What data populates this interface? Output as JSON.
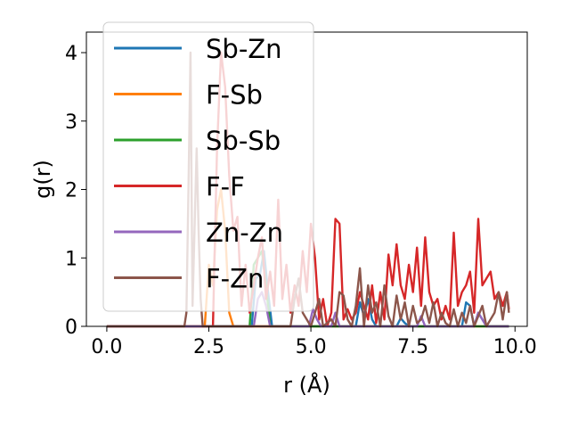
{
  "chart_data": {
    "type": "line",
    "xlabel": "r (Å)",
    "ylabel": "g(r)",
    "xlim": [
      -0.5,
      10.3
    ],
    "ylim": [
      0,
      4.3
    ],
    "xticks": [
      0.0,
      2.5,
      5.0,
      7.5,
      10.0
    ],
    "xtick_labels": [
      "0.0",
      "2.5",
      "5.0",
      "7.5",
      "10.0"
    ],
    "yticks": [
      0,
      1,
      2,
      3,
      4
    ],
    "ytick_labels": [
      "0",
      "1",
      "2",
      "3",
      "4"
    ],
    "grid": false,
    "legend_position": "upper-left",
    "series": [
      {
        "name": "Sb-Zn",
        "color": "#1f77b4",
        "x": [
          0,
          3.55,
          3.65,
          3.75,
          3.85,
          3.95,
          4.05,
          5.8,
          6.1,
          6.2,
          6.3,
          6.4,
          6.5,
          6.6,
          7.1,
          7.2,
          7.3,
          7.4,
          8.7,
          8.8,
          8.9,
          9.0,
          9.1,
          9.2,
          9.3,
          9.85
        ],
        "y": [
          0,
          0,
          0.7,
          0.75,
          1.1,
          0.5,
          0,
          0,
          0,
          0.35,
          0.15,
          0.4,
          0.1,
          0,
          0,
          0.12,
          0.05,
          0,
          0,
          0.35,
          0.3,
          0,
          0.2,
          0.1,
          0,
          0
        ]
      },
      {
        "name": "F-Sb",
        "color": "#ff7f0e",
        "x": [
          0,
          2.4,
          2.5,
          2.6,
          2.7,
          2.8,
          2.9,
          3.0,
          3.1,
          9.85
        ],
        "y": [
          0,
          0,
          0.9,
          0.6,
          1.7,
          2.0,
          1.4,
          0.2,
          0,
          0
        ]
      },
      {
        "name": "Sb-Sb",
        "color": "#2ca02c",
        "x": [
          0,
          3.5,
          3.6,
          3.7,
          3.8,
          3.9,
          4.0,
          9.85
        ],
        "y": [
          0,
          0,
          0.9,
          1.0,
          1.1,
          0.6,
          0,
          0
        ]
      },
      {
        "name": "F-F",
        "color": "#d62728",
        "x": [
          0,
          2.6,
          2.7,
          2.8,
          2.9,
          3.0,
          3.1,
          3.2,
          3.3,
          3.4,
          3.5,
          3.6,
          3.7,
          3.8,
          3.9,
          4.0,
          4.1,
          4.2,
          4.3,
          4.4,
          4.5,
          4.6,
          4.7,
          4.8,
          4.9,
          5.0,
          5.1,
          5.2,
          5.3,
          5.4,
          5.5,
          5.6,
          5.7,
          5.8,
          5.9,
          6.0,
          6.1,
          6.2,
          6.3,
          6.4,
          6.5,
          6.6,
          6.7,
          6.8,
          6.9,
          7.0,
          7.1,
          7.2,
          7.3,
          7.4,
          7.5,
          7.6,
          7.7,
          7.8,
          7.9,
          8.0,
          8.1,
          8.2,
          8.3,
          8.4,
          8.5,
          8.6,
          8.7,
          8.8,
          8.9,
          9.0,
          9.1,
          9.2,
          9.3,
          9.4,
          9.5,
          9.6,
          9.7,
          9.8,
          9.85
        ],
        "y": [
          0,
          0,
          2.6,
          4.0,
          3.5,
          2.2,
          1.4,
          1.6,
          0.3,
          0.9,
          0.2,
          0.6,
          1.0,
          1.3,
          0.4,
          0.8,
          0.3,
          1.85,
          0.4,
          0.9,
          0.2,
          0.6,
          0.3,
          1.1,
          0.5,
          1.5,
          1.0,
          0.1,
          0.4,
          0.0,
          0.2,
          1.57,
          1.5,
          0.1,
          0.25,
          0.1,
          0.2,
          0.5,
          0.3,
          0.1,
          0.6,
          0.05,
          0.5,
          0.1,
          1.05,
          0.6,
          1.2,
          0.6,
          0.4,
          0.9,
          0.5,
          1.15,
          0.3,
          1.3,
          0.5,
          0.3,
          0.4,
          0.1,
          0.3,
          0.1,
          1.37,
          0.3,
          0.5,
          0.6,
          0.8,
          0.2,
          1.57,
          0.6,
          0.7,
          0.8,
          0.4,
          0.5,
          0.3,
          0.5,
          0.25
        ]
      },
      {
        "name": "Zn-Zn",
        "color": "#9467bd",
        "x": [
          0,
          3.6,
          3.7,
          3.8,
          3.9,
          4.0,
          4.95,
          5.05,
          5.15,
          5.25,
          5.5,
          5.6,
          5.7,
          7.6,
          7.7,
          7.8,
          9.0,
          9.1,
          9.2,
          9.3,
          9.85
        ],
        "y": [
          0,
          0,
          0.4,
          0.5,
          0.3,
          0,
          0,
          0.25,
          0.1,
          0,
          0,
          0.2,
          0,
          0,
          0.15,
          0,
          0,
          0.2,
          0.1,
          0,
          0
        ]
      },
      {
        "name": "F-Zn",
        "color": "#8c564b",
        "x": [
          0,
          1.9,
          1.95,
          2.0,
          2.05,
          2.1,
          2.2,
          2.25,
          2.3,
          2.35,
          4.5,
          4.6,
          4.7,
          4.8,
          5.0,
          5.1,
          5.2,
          5.3,
          5.5,
          5.6,
          5.7,
          5.8,
          5.9,
          6.0,
          6.1,
          6.2,
          6.3,
          6.4,
          6.5,
          6.6,
          6.7,
          6.8,
          6.9,
          7.0,
          7.1,
          7.2,
          7.3,
          7.4,
          7.5,
          7.6,
          7.7,
          7.8,
          7.9,
          8.0,
          8.1,
          8.2,
          8.3,
          8.4,
          8.5,
          8.6,
          8.7,
          8.8,
          8.9,
          9.0,
          9.1,
          9.2,
          9.3,
          9.4,
          9.5,
          9.6,
          9.7,
          9.8,
          9.85
        ],
        "y": [
          0,
          0,
          0.2,
          2.0,
          4.0,
          0.3,
          2.6,
          1.4,
          0.4,
          0,
          0,
          0.4,
          0.7,
          0.2,
          0,
          0.2,
          0.4,
          0.0,
          0.1,
          0.0,
          0.5,
          0.45,
          0.1,
          0.0,
          0.3,
          0.85,
          0.0,
          0.6,
          0.2,
          0.35,
          0.0,
          0.6,
          0.15,
          0.0,
          0.45,
          0.1,
          0.35,
          0.0,
          0.3,
          0.05,
          0.1,
          0.3,
          0.05,
          0.35,
          0.0,
          0.2,
          0.05,
          0.0,
          0.25,
          0.0,
          0.2,
          0.05,
          0.3,
          0.0,
          0.15,
          0.3,
          0.0,
          0.1,
          0.2,
          0.5,
          0.1,
          0.5,
          0.2
        ]
      }
    ]
  }
}
